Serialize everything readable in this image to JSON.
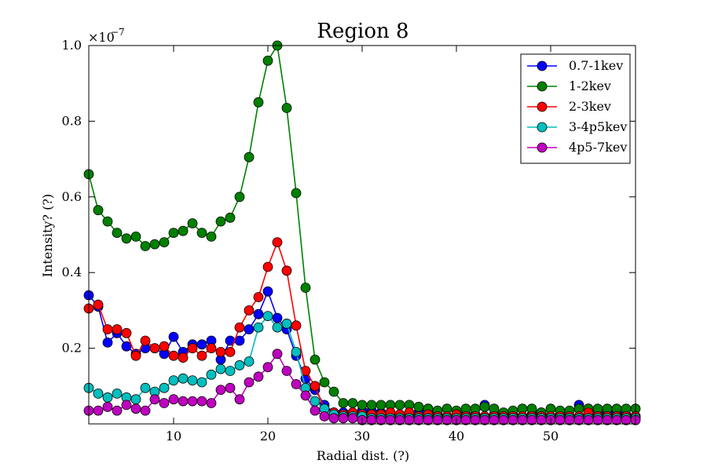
{
  "chart_data": {
    "type": "line",
    "title": "Region 8",
    "xlabel": "Radial dist. (?)",
    "ylabel": "Intensity? (?)",
    "y_multiplier_text": "×10",
    "y_multiplier_exponent": "−7",
    "xlim": [
      1,
      59
    ],
    "ylim": [
      0,
      1.0
    ],
    "x_ticks": [
      10,
      20,
      30,
      40,
      50
    ],
    "x_tick_labels": [
      "10",
      "20",
      "30",
      "40",
      "50"
    ],
    "y_ticks": [
      0.2,
      0.4,
      0.6,
      0.8,
      1.0
    ],
    "y_tick_labels": [
      "0.2",
      "0.4",
      "0.6",
      "0.8",
      "1.0"
    ],
    "grid": false,
    "legend_position": "top-right",
    "x": [
      1,
      2,
      3,
      4,
      5,
      6,
      7,
      8,
      9,
      10,
      11,
      12,
      13,
      14,
      15,
      16,
      17,
      18,
      19,
      20,
      21,
      22,
      23,
      24,
      25,
      26,
      27,
      28,
      29,
      30,
      31,
      32,
      33,
      34,
      35,
      36,
      37,
      38,
      39,
      40,
      41,
      42,
      43,
      44,
      45,
      46,
      47,
      48,
      49,
      50,
      51,
      52,
      53,
      54,
      55,
      56,
      57,
      58,
      59
    ],
    "series": [
      {
        "name": "0.7-1kev",
        "color": "#0000ff",
        "values": [
          0.34,
          0.31,
          0.215,
          0.24,
          0.205,
          0.185,
          0.2,
          0.2,
          0.185,
          0.23,
          0.19,
          0.21,
          0.21,
          0.22,
          0.17,
          0.22,
          0.22,
          0.25,
          0.29,
          0.35,
          0.28,
          0.25,
          0.18,
          0.12,
          0.09,
          0.05,
          0.03,
          0.03,
          0.025,
          0.035,
          0.035,
          0.03,
          0.03,
          0.025,
          0.025,
          0.03,
          0.04,
          0.025,
          0.02,
          0.02,
          0.025,
          0.025,
          0.05,
          0.025,
          0.02,
          0.025,
          0.02,
          0.025,
          0.03,
          0.02,
          0.025,
          0.02,
          0.05,
          0.04,
          0.025,
          0.03,
          0.03,
          0.025,
          0.02
        ]
      },
      {
        "name": "1-2kev",
        "color": "#008000",
        "values": [
          0.66,
          0.565,
          0.535,
          0.505,
          0.49,
          0.495,
          0.47,
          0.475,
          0.48,
          0.505,
          0.51,
          0.53,
          0.505,
          0.495,
          0.535,
          0.545,
          0.6,
          0.705,
          0.85,
          0.96,
          1.0,
          0.835,
          0.61,
          0.36,
          0.17,
          0.11,
          0.085,
          0.055,
          0.055,
          0.05,
          0.05,
          0.05,
          0.05,
          0.05,
          0.05,
          0.045,
          0.04,
          0.035,
          0.04,
          0.035,
          0.04,
          0.04,
          0.045,
          0.04,
          0.03,
          0.035,
          0.04,
          0.04,
          0.03,
          0.04,
          0.035,
          0.035,
          0.04,
          0.04,
          0.04,
          0.04,
          0.04,
          0.04,
          0.04
        ]
      },
      {
        "name": "2-3kev",
        "color": "#ff0000",
        "values": [
          0.305,
          0.315,
          0.25,
          0.25,
          0.24,
          0.18,
          0.22,
          0.2,
          0.205,
          0.18,
          0.175,
          0.2,
          0.18,
          0.2,
          0.19,
          0.19,
          0.255,
          0.3,
          0.335,
          0.415,
          0.48,
          0.405,
          0.26,
          0.14,
          0.1,
          0.04,
          0.03,
          0.025,
          0.03,
          0.025,
          0.025,
          0.025,
          0.03,
          0.025,
          0.03,
          0.02,
          0.025,
          0.02,
          0.02,
          0.025,
          0.02,
          0.02,
          0.02,
          0.02,
          0.02,
          0.02,
          0.02,
          0.02,
          0.02,
          0.02,
          0.02,
          0.02,
          0.02,
          0.03,
          0.02,
          0.02,
          0.02,
          0.02,
          0.02
        ]
      },
      {
        "name": "3-4p5kev",
        "color": "#00bfbf",
        "values": [
          0.095,
          0.08,
          0.07,
          0.08,
          0.07,
          0.065,
          0.095,
          0.085,
          0.095,
          0.115,
          0.12,
          0.115,
          0.11,
          0.13,
          0.145,
          0.14,
          0.155,
          0.165,
          0.255,
          0.285,
          0.255,
          0.265,
          0.19,
          0.095,
          0.06,
          0.04,
          0.025,
          0.02,
          0.02,
          0.02,
          0.015,
          0.015,
          0.015,
          0.015,
          0.015,
          0.015,
          0.015,
          0.015,
          0.015,
          0.015,
          0.015,
          0.015,
          0.015,
          0.015,
          0.015,
          0.015,
          0.015,
          0.015,
          0.015,
          0.015,
          0.015,
          0.015,
          0.015,
          0.015,
          0.015,
          0.015,
          0.015,
          0.015,
          0.015
        ]
      },
      {
        "name": "4p5-7kev",
        "color": "#bf00bf",
        "values": [
          0.035,
          0.035,
          0.045,
          0.035,
          0.05,
          0.04,
          0.035,
          0.065,
          0.055,
          0.065,
          0.06,
          0.06,
          0.06,
          0.055,
          0.09,
          0.095,
          0.065,
          0.11,
          0.125,
          0.15,
          0.185,
          0.14,
          0.105,
          0.075,
          0.035,
          0.02,
          0.015,
          0.015,
          0.015,
          0.01,
          0.01,
          0.01,
          0.01,
          0.01,
          0.01,
          0.01,
          0.01,
          0.01,
          0.01,
          0.01,
          0.01,
          0.01,
          0.01,
          0.01,
          0.01,
          0.01,
          0.01,
          0.01,
          0.01,
          0.01,
          0.01,
          0.01,
          0.01,
          0.01,
          0.01,
          0.01,
          0.01,
          0.01,
          0.01
        ]
      }
    ]
  }
}
